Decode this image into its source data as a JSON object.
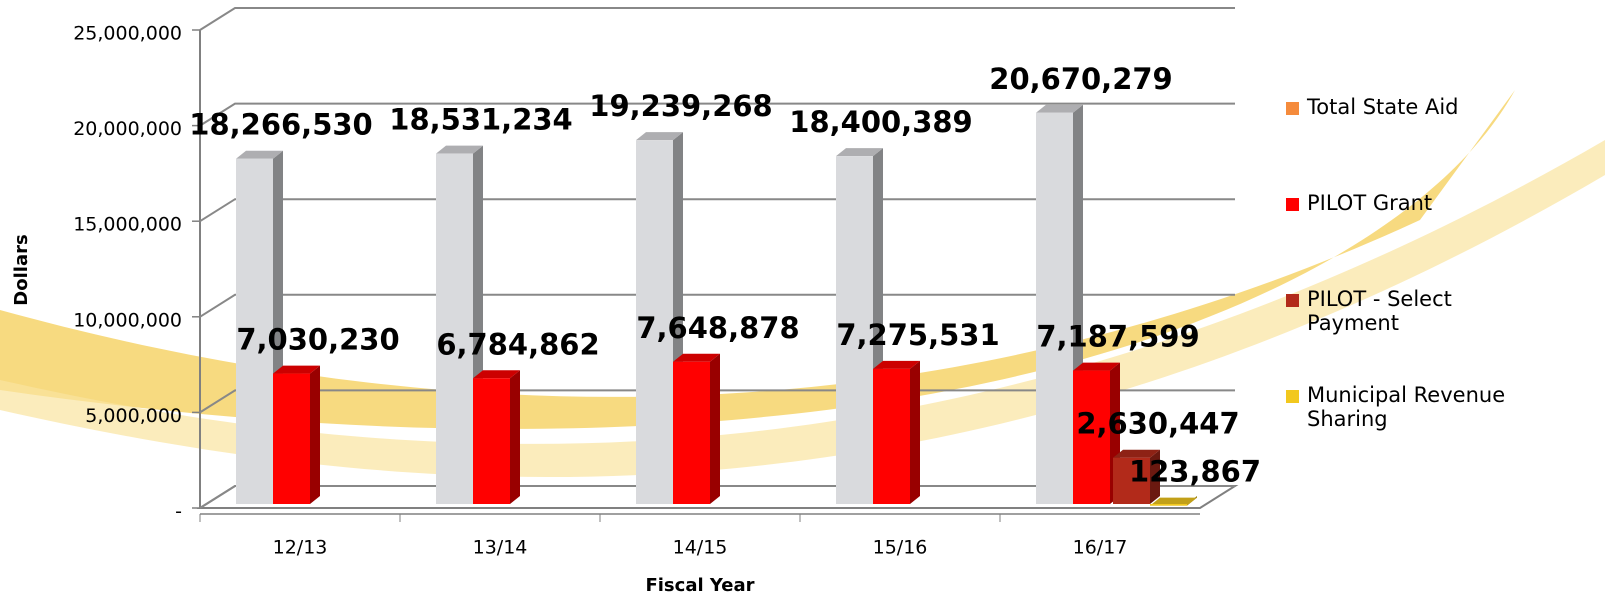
{
  "chart_data": {
    "type": "bar3d",
    "x_label": "Fiscal Year",
    "y_label": "Dollars",
    "categories": [
      "12/13",
      "13/14",
      "14/15",
      "15/16",
      "16/17"
    ],
    "series": [
      {
        "name": "Total State Aid",
        "color": "#d9dadd",
        "legend_color": "#f58b3c",
        "values": [
          18266530,
          18531234,
          19239268,
          18400389,
          20670279
        ],
        "value_labels": [
          "18,266,530",
          "18,531,234",
          "19,239,268",
          "18,400,389",
          "20,670,279"
        ]
      },
      {
        "name": "PILOT Grant",
        "color": "#ff0000",
        "values": [
          7030230,
          6784862,
          7648878,
          7275531,
          7187599
        ],
        "value_labels": [
          "7,030,230",
          "6,784,862",
          "7,648,878",
          "7,275,531",
          "7,187,599"
        ]
      },
      {
        "name": "PILOT - Select Payment",
        "color": "#b22a1a",
        "values": [
          null,
          null,
          null,
          null,
          2630447
        ],
        "value_labels": [
          null,
          null,
          null,
          null,
          "2,630,447"
        ]
      },
      {
        "name": "Municipal Revenue Sharing",
        "color": "#f2c81e",
        "values": [
          null,
          null,
          null,
          null,
          123867
        ],
        "value_labels": [
          null,
          null,
          null,
          null,
          "123,867"
        ]
      }
    ],
    "ylim": [
      0,
      25000000
    ],
    "yticks": [
      {
        "value": 0,
        "label": "-"
      },
      {
        "value": 5000000,
        "label": "5,000,000"
      },
      {
        "value": 10000000,
        "label": "10,000,000"
      },
      {
        "value": 15000000,
        "label": "15,000,000"
      },
      {
        "value": 20000000,
        "label": "20,000,000"
      },
      {
        "value": 25000000,
        "label": "25,000,000"
      }
    ],
    "grid": true,
    "legend": "right"
  }
}
